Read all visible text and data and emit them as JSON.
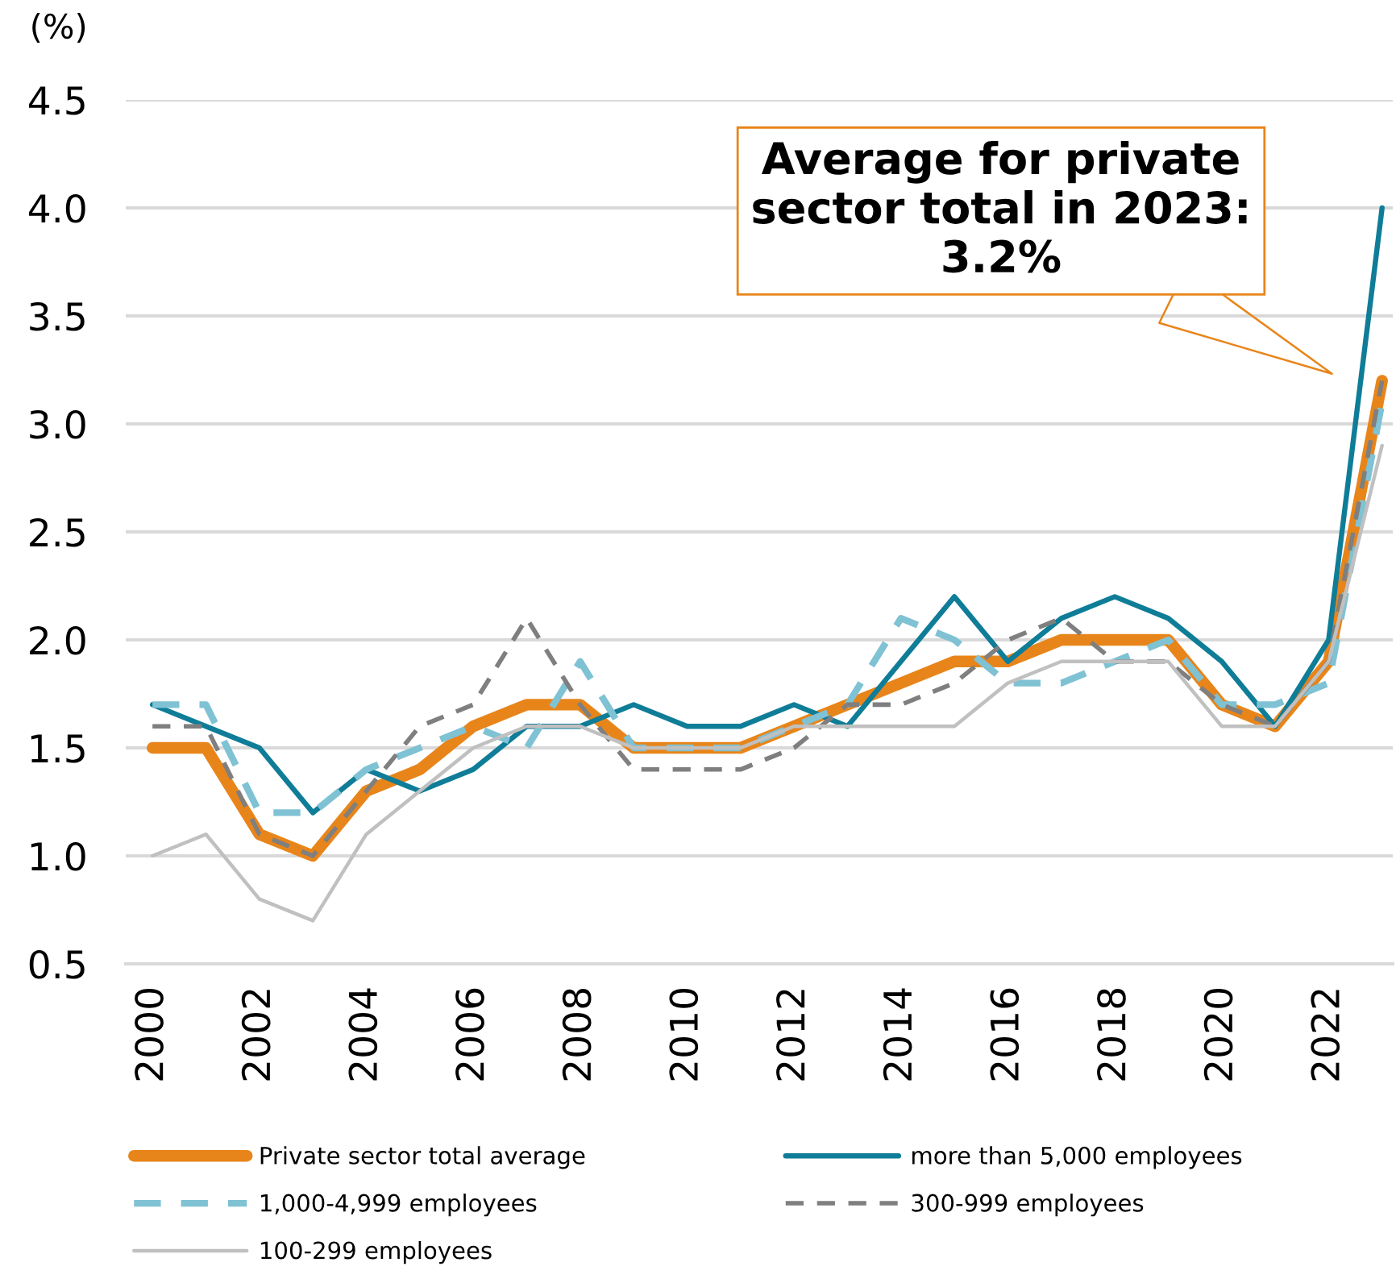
{
  "chart_data": {
    "type": "line",
    "ylabel": "(%)",
    "x": [
      2000,
      2001,
      2002,
      2003,
      2004,
      2005,
      2006,
      2007,
      2008,
      2009,
      2010,
      2011,
      2012,
      2013,
      2014,
      2015,
      2016,
      2017,
      2018,
      2019,
      2020,
      2021,
      2022,
      2023
    ],
    "xlim": [
      1999.5,
      2023.2
    ],
    "xticks": [
      2000,
      2002,
      2004,
      2006,
      2008,
      2010,
      2012,
      2014,
      2016,
      2018,
      2020,
      2022
    ],
    "ylim": [
      0.5,
      4.5
    ],
    "yticks": [
      0.5,
      {
        "value": 1,
        "label": "1.0"
      },
      1.5,
      {
        "value": 2,
        "label": "2.0"
      },
      2.5,
      {
        "value": 3,
        "label": "3.0"
      },
      3.5,
      {
        "value": 4,
        "label": "4.0"
      },
      4.5
    ],
    "grid": "y",
    "legend": "bottom",
    "series": [
      {
        "name": "Private sector total average",
        "color": "#e8851a",
        "line_style": "solid",
        "values": [
          1.5,
          1.5,
          1.1,
          1.0,
          1.3,
          1.4,
          1.6,
          1.7,
          1.7,
          1.5,
          1.5,
          1.5,
          1.6,
          1.7,
          1.8,
          1.9,
          1.9,
          2.0,
          2.0,
          2.0,
          1.7,
          1.6,
          1.9,
          3.2
        ]
      },
      {
        "name": "more than 5,000 employees",
        "color": "#0f7d98",
        "line_style": "solid",
        "values": [
          1.7,
          1.6,
          1.5,
          1.2,
          1.4,
          1.3,
          1.4,
          1.6,
          1.6,
          1.7,
          1.6,
          1.6,
          1.7,
          1.6,
          1.9,
          2.2,
          1.9,
          2.1,
          2.2,
          2.1,
          1.9,
          1.6,
          2.0,
          4.0
        ]
      },
      {
        "name": "1,000-4,999 employees",
        "color": "#7fc2d4",
        "line_style": "dashed",
        "values": [
          1.7,
          1.7,
          1.2,
          1.2,
          1.4,
          1.5,
          1.6,
          1.5,
          1.9,
          1.5,
          1.5,
          1.5,
          1.6,
          1.7,
          2.1,
          2.0,
          1.8,
          1.8,
          1.9,
          2.0,
          1.7,
          1.7,
          1.8,
          3.1
        ]
      },
      {
        "name": "300-999 employees",
        "color": "#7f7f7f",
        "line_style": "dashed",
        "values": [
          1.6,
          1.6,
          1.1,
          1.0,
          1.3,
          1.6,
          1.7,
          2.1,
          1.7,
          1.4,
          1.4,
          1.4,
          1.5,
          1.7,
          1.7,
          1.8,
          2.0,
          2.1,
          1.9,
          1.9,
          1.7,
          1.6,
          1.9,
          3.2
        ]
      },
      {
        "name": "100-299 employees",
        "color": "#c0c0c0",
        "line_style": "solid",
        "values": [
          1.0,
          1.1,
          0.8,
          0.7,
          1.1,
          1.3,
          1.5,
          1.6,
          1.6,
          1.5,
          1.5,
          1.5,
          1.6,
          1.6,
          1.6,
          1.6,
          1.8,
          1.9,
          1.9,
          1.9,
          1.6,
          1.6,
          1.9,
          2.9
        ]
      }
    ],
    "annotations": [
      "Average for private sector total in 2023: 3.2%"
    ]
  }
}
